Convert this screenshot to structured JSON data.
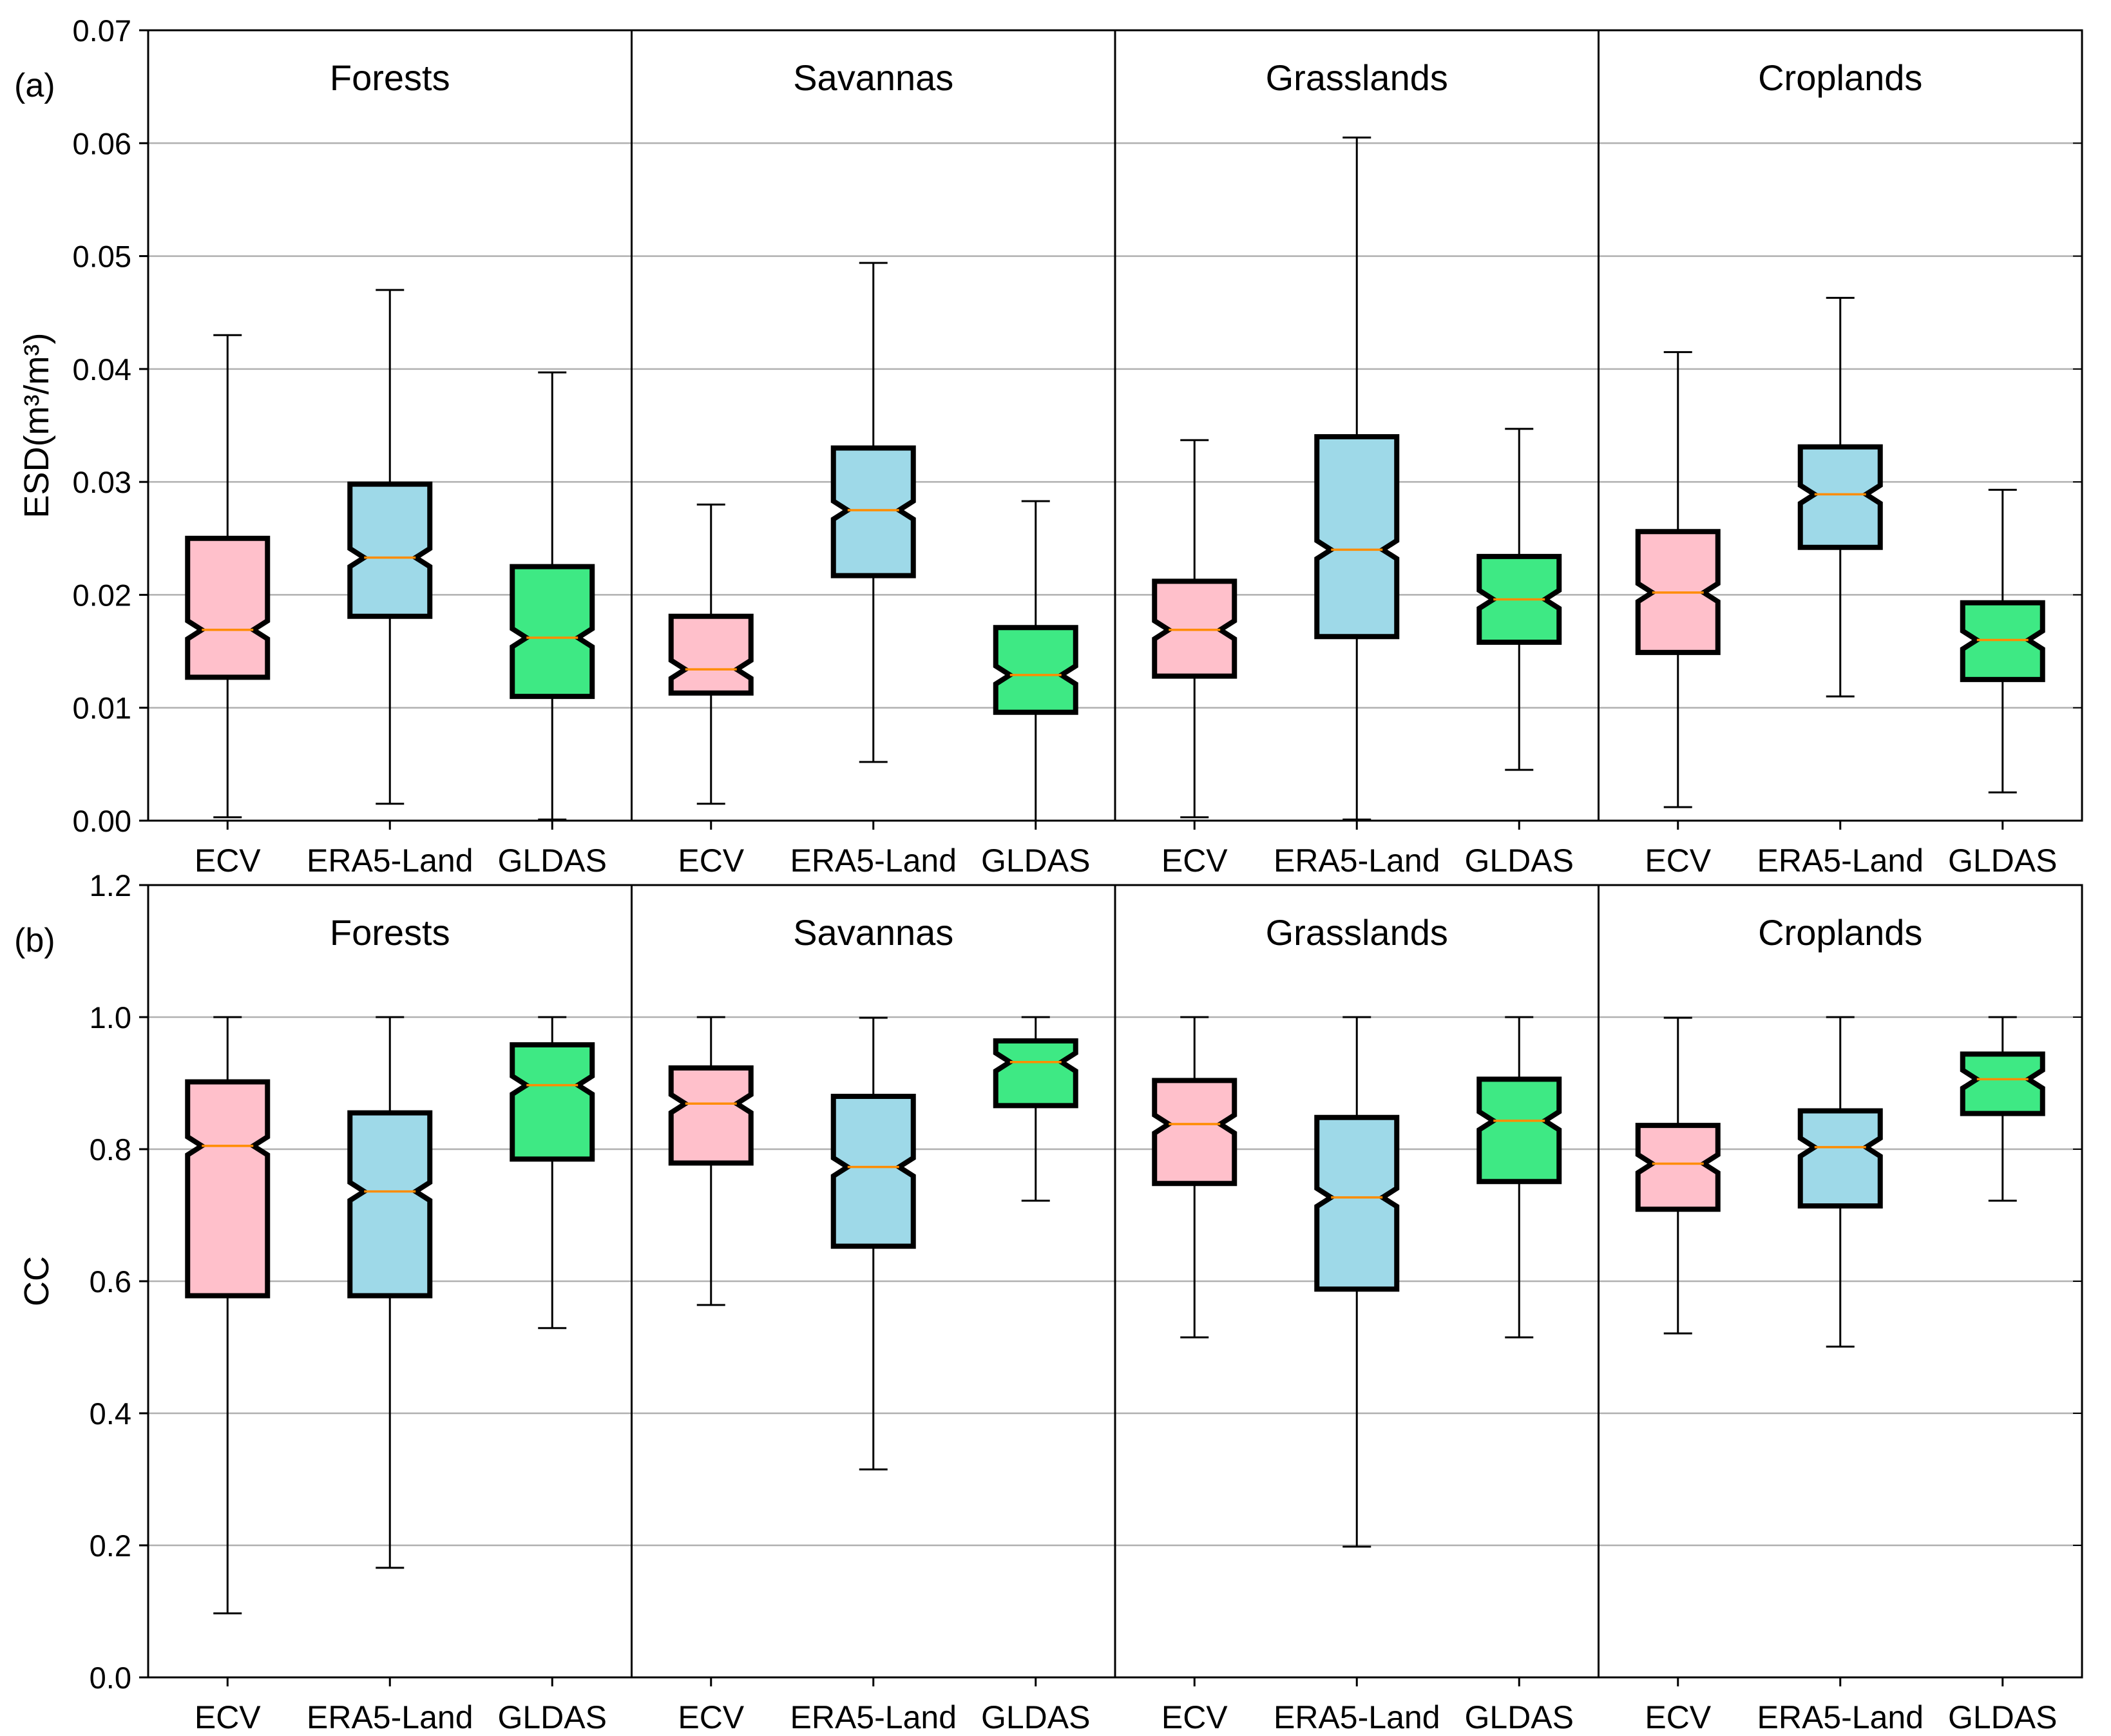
{
  "chart_data": {
    "type": "boxplot",
    "colors": {
      "ECV": "#ffc0cb",
      "ERA5-Land": "#9ed9e8",
      "GLDAS": "#3ee984",
      "median": "#ff8c00",
      "grid": "#b0b0b0"
    },
    "datasets": [
      "ECV",
      "ERA5-Land",
      "GLDAS"
    ],
    "panels": [
      {
        "label": "(a)",
        "ylabel": "ESD(m³/m³)",
        "ylim": [
          0,
          0.07
        ],
        "yticks": [
          0.0,
          0.01,
          0.02,
          0.03,
          0.04,
          0.05,
          0.06,
          0.07
        ],
        "tick_labels": [
          "0.00",
          "0.01",
          "0.02",
          "0.03",
          "0.04",
          "0.05",
          "0.06",
          "0.07"
        ],
        "grid": true,
        "groups": [
          {
            "name": "Forests",
            "boxes": [
              {
                "dataset": "ECV",
                "whislo": 0.0003,
                "q1": 0.0127,
                "med": 0.0169,
                "q3": 0.025,
                "whishi": 0.043
              },
              {
                "dataset": "ERA5-Land",
                "whislo": 0.0015,
                "q1": 0.0181,
                "med": 0.0233,
                "q3": 0.0298,
                "whishi": 0.047
              },
              {
                "dataset": "GLDAS",
                "whislo": 0.0001,
                "q1": 0.011,
                "med": 0.0162,
                "q3": 0.0225,
                "whishi": 0.0397
              }
            ]
          },
          {
            "name": "Savannas",
            "boxes": [
              {
                "dataset": "ECV",
                "whislo": 0.0015,
                "q1": 0.0113,
                "med": 0.0134,
                "q3": 0.0181,
                "whishi": 0.028
              },
              {
                "dataset": "ERA5-Land",
                "whislo": 0.0052,
                "q1": 0.0217,
                "med": 0.0275,
                "q3": 0.033,
                "whishi": 0.0494
              },
              {
                "dataset": "GLDAS",
                "whislo": 0.0,
                "q1": 0.0096,
                "med": 0.0129,
                "q3": 0.0171,
                "whishi": 0.0283
              }
            ]
          },
          {
            "name": "Grasslands",
            "boxes": [
              {
                "dataset": "ECV",
                "whislo": 0.0003,
                "q1": 0.0128,
                "med": 0.0169,
                "q3": 0.0212,
                "whishi": 0.0337
              },
              {
                "dataset": "ERA5-Land",
                "whislo": 0.0001,
                "q1": 0.0163,
                "med": 0.024,
                "q3": 0.034,
                "whishi": 0.0605
              },
              {
                "dataset": "GLDAS",
                "whislo": 0.0045,
                "q1": 0.0158,
                "med": 0.0196,
                "q3": 0.0234,
                "whishi": 0.0347
              }
            ]
          },
          {
            "name": "Croplands",
            "boxes": [
              {
                "dataset": "ECV",
                "whislo": 0.0012,
                "q1": 0.0149,
                "med": 0.0202,
                "q3": 0.0256,
                "whishi": 0.0415
              },
              {
                "dataset": "ERA5-Land",
                "whislo": 0.011,
                "q1": 0.0242,
                "med": 0.0289,
                "q3": 0.0331,
                "whishi": 0.0463
              },
              {
                "dataset": "GLDAS",
                "whislo": 0.0025,
                "q1": 0.0125,
                "med": 0.016,
                "q3": 0.0193,
                "whishi": 0.0293
              }
            ]
          }
        ]
      },
      {
        "label": "(b)",
        "ylabel": "CC",
        "ylim": [
          0,
          1.2
        ],
        "yticks": [
          0.0,
          0.2,
          0.4,
          0.6,
          0.8,
          1.0,
          1.2
        ],
        "tick_labels": [
          "0.0",
          "0.2",
          "0.4",
          "0.6",
          "0.8",
          "1.0",
          "1.2"
        ],
        "grid": true,
        "groups": [
          {
            "name": "Forests",
            "boxes": [
              {
                "dataset": "ECV",
                "whislo": 0.097,
                "q1": 0.578,
                "med": 0.805,
                "q3": 0.902,
                "whishi": 1.0
              },
              {
                "dataset": "ERA5-Land",
                "whislo": 0.166,
                "q1": 0.578,
                "med": 0.736,
                "q3": 0.855,
                "whishi": 1.0
              },
              {
                "dataset": "GLDAS",
                "whislo": 0.529,
                "q1": 0.785,
                "med": 0.897,
                "q3": 0.958,
                "whishi": 1.0
              }
            ]
          },
          {
            "name": "Savannas",
            "boxes": [
              {
                "dataset": "ECV",
                "whislo": 0.564,
                "q1": 0.779,
                "med": 0.869,
                "q3": 0.923,
                "whishi": 1.0
              },
              {
                "dataset": "ERA5-Land",
                "whislo": 0.315,
                "q1": 0.653,
                "med": 0.773,
                "q3": 0.88,
                "whishi": 0.999
              },
              {
                "dataset": "GLDAS",
                "whislo": 0.722,
                "q1": 0.866,
                "med": 0.932,
                "q3": 0.964,
                "whishi": 1.0
              }
            ]
          },
          {
            "name": "Grasslands",
            "boxes": [
              {
                "dataset": "ECV",
                "whislo": 0.515,
                "q1": 0.748,
                "med": 0.838,
                "q3": 0.904,
                "whishi": 1.0
              },
              {
                "dataset": "ERA5-Land",
                "whislo": 0.198,
                "q1": 0.588,
                "med": 0.727,
                "q3": 0.848,
                "whishi": 1.0
              },
              {
                "dataset": "GLDAS",
                "whislo": 0.515,
                "q1": 0.751,
                "med": 0.843,
                "q3": 0.906,
                "whishi": 1.0
              }
            ]
          },
          {
            "name": "Croplands",
            "boxes": [
              {
                "dataset": "ECV",
                "whislo": 0.521,
                "q1": 0.709,
                "med": 0.778,
                "q3": 0.836,
                "whishi": 0.999
              },
              {
                "dataset": "ERA5-Land",
                "whislo": 0.501,
                "q1": 0.714,
                "med": 0.803,
                "q3": 0.858,
                "whishi": 1.0
              },
              {
                "dataset": "GLDAS",
                "whislo": 0.722,
                "q1": 0.854,
                "med": 0.906,
                "q3": 0.944,
                "whishi": 1.0
              }
            ]
          }
        ]
      }
    ]
  }
}
